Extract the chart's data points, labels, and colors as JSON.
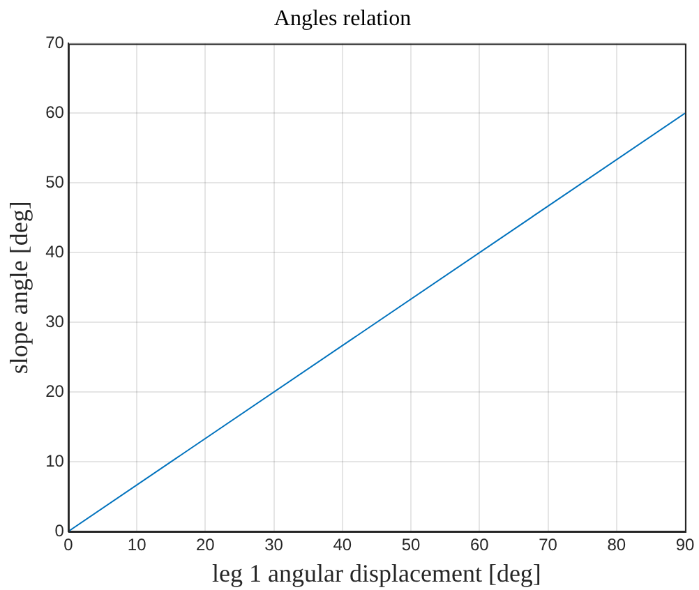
{
  "chart_data": {
    "type": "line",
    "title": "Angles relation",
    "xlabel": "leg 1 angular displacement [deg]",
    "ylabel": "slope angle [deg]",
    "x": [
      0,
      90
    ],
    "series": [
      {
        "color": "#0072bd",
        "values": [
          0,
          60
        ]
      }
    ],
    "xlim": [
      0,
      90
    ],
    "xticks": [
      0,
      10,
      20,
      30,
      40,
      50,
      60,
      70,
      80,
      90
    ],
    "ylim": [
      0,
      70
    ],
    "yticks": [
      0,
      10,
      20,
      30,
      40,
      50,
      60,
      70
    ],
    "grid": true,
    "marker": "none",
    "line_style": "solid"
  }
}
